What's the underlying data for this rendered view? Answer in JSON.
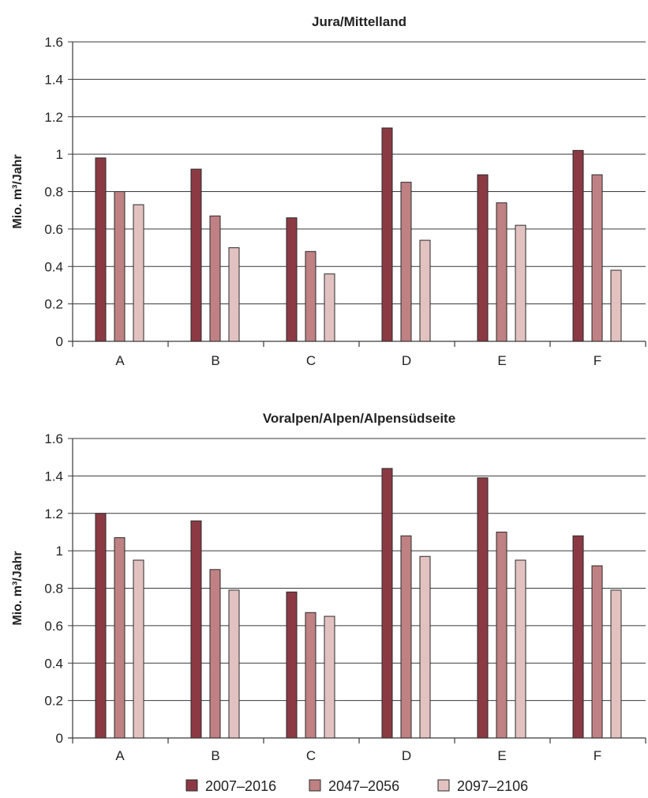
{
  "chart_data": [
    {
      "type": "bar",
      "title": "Jura/Mittelland",
      "ylabel": "Mio. m³/Jahr",
      "xlabel": "",
      "ylim": [
        0,
        1.6
      ],
      "yticks": [
        "0",
        "0.2",
        "0.4",
        "0.6",
        "0.8",
        "1",
        "1.2",
        "1.4",
        "1.6"
      ],
      "grid": true,
      "categories": [
        "A",
        "B",
        "C",
        "D",
        "E",
        "F"
      ],
      "series": [
        {
          "name": "2007–2016",
          "values": [
            0.98,
            0.92,
            0.66,
            1.14,
            0.89,
            1.02
          ]
        },
        {
          "name": "2047–2056",
          "values": [
            0.8,
            0.67,
            0.48,
            0.85,
            0.74,
            0.89
          ]
        },
        {
          "name": "2097–2106",
          "values": [
            0.73,
            0.5,
            0.36,
            0.54,
            0.62,
            0.38
          ]
        }
      ]
    },
    {
      "type": "bar",
      "title": "Voralpen/Alpen/Alpensüdseite",
      "ylabel": "Mio. m³/Jahr",
      "xlabel": "",
      "ylim": [
        0,
        1.6
      ],
      "yticks": [
        "0",
        "0.2",
        "0.4",
        "0.6",
        "0.8",
        "1",
        "1.2",
        "1.4",
        "1.6"
      ],
      "grid": true,
      "categories": [
        "A",
        "B",
        "C",
        "D",
        "E",
        "F"
      ],
      "series": [
        {
          "name": "2007–2016",
          "values": [
            1.2,
            1.16,
            0.78,
            1.44,
            1.39,
            1.08
          ]
        },
        {
          "name": "2047–2056",
          "values": [
            1.07,
            0.9,
            0.67,
            1.08,
            1.1,
            0.92
          ]
        },
        {
          "name": "2097–2106",
          "values": [
            0.95,
            0.79,
            0.65,
            0.97,
            0.95,
            0.79
          ]
        }
      ]
    }
  ],
  "legend": {
    "placement": "bottom",
    "items": [
      {
        "label": "2007–2016",
        "color": "#8b3a44"
      },
      {
        "label": "2047–2056",
        "color": "#bf8183"
      },
      {
        "label": "2097–2106",
        "color": "#e2c2c0"
      }
    ]
  },
  "colors": {
    "series": [
      "#8b3a44",
      "#bf8183",
      "#e2c2c0"
    ],
    "grid": "#3a3a3a"
  }
}
